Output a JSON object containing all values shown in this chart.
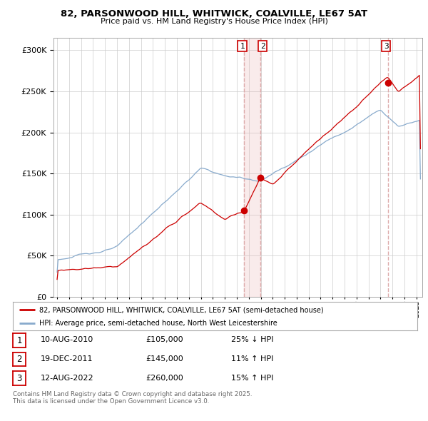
{
  "title1": "82, PARSONWOOD HILL, WHITWICK, COALVILLE, LE67 5AT",
  "title2": "Price paid vs. HM Land Registry's House Price Index (HPI)",
  "ytick_vals": [
    0,
    50000,
    100000,
    150000,
    200000,
    250000,
    300000
  ],
  "ylim": [
    0,
    315000
  ],
  "xlim_start": 1994.7,
  "xlim_end": 2025.5,
  "sale_dates": [
    2010.608,
    2011.963,
    2022.617
  ],
  "sale_prices": [
    105000,
    145000,
    260000
  ],
  "sale_labels": [
    "1",
    "2",
    "3"
  ],
  "vline_color": "#ddaaaa",
  "vshade_start": 2010.608,
  "vshade_end": 2011.963,
  "line_property_color": "#cc0000",
  "line_hpi_color": "#88aacc",
  "legend_property_label": "82, PARSONWOOD HILL, WHITWICK, COALVILLE, LE67 5AT (semi-detached house)",
  "legend_hpi_label": "HPI: Average price, semi-detached house, North West Leicestershire",
  "table_rows": [
    {
      "num": "1",
      "date": "10-AUG-2010",
      "price": "£105,000",
      "hpi": "25% ↓ HPI"
    },
    {
      "num": "2",
      "date": "19-DEC-2011",
      "price": "£145,000",
      "hpi": "11% ↑ HPI"
    },
    {
      "num": "3",
      "date": "12-AUG-2022",
      "price": "£260,000",
      "hpi": "15% ↑ HPI"
    }
  ],
  "footer_text": "Contains HM Land Registry data © Crown copyright and database right 2025.\nThis data is licensed under the Open Government Licence v3.0.",
  "bg_color": "#ffffff",
  "grid_color": "#cccccc",
  "label_box_color": "#cc0000"
}
